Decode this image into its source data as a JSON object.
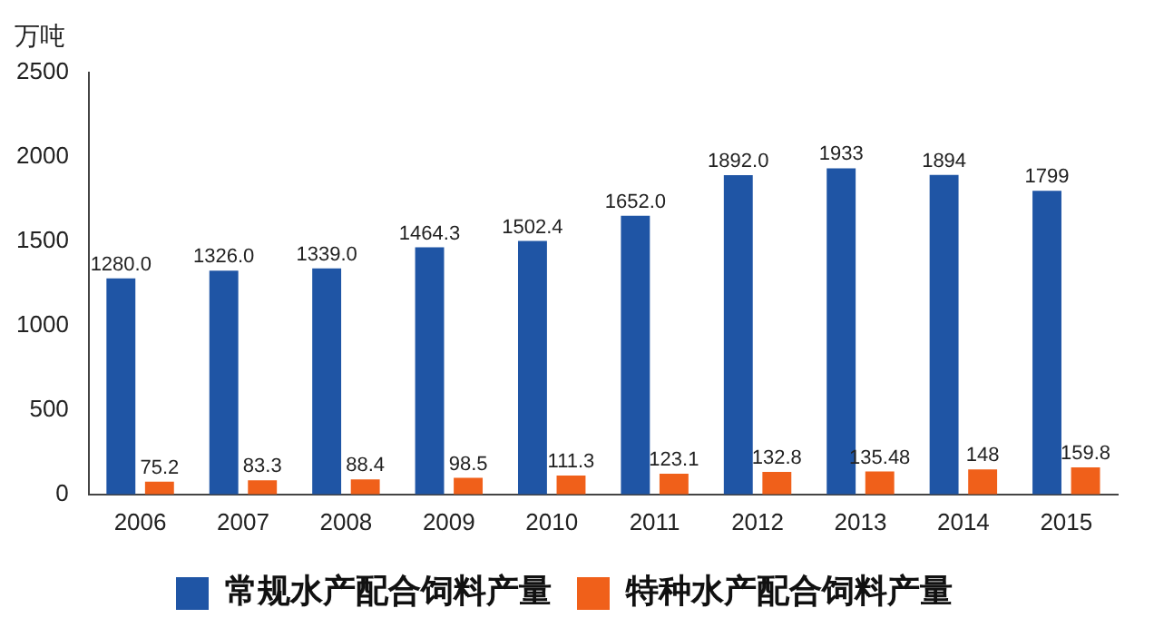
{
  "chart_data": {
    "type": "bar",
    "ylabel": "万吨",
    "categories": [
      "2006",
      "2007",
      "2008",
      "2009",
      "2010",
      "2011",
      "2012",
      "2013",
      "2014",
      "2015"
    ],
    "series": [
      {
        "name": "常规水产配合饲料产量",
        "color": "#1f55a5",
        "values": [
          1280.0,
          1326.0,
          1339.0,
          1464.3,
          1502.4,
          1652.0,
          1892.0,
          1933,
          1894,
          1799
        ],
        "value_labels": [
          "1280.0",
          "1326.0",
          "1339.0",
          "1464.3",
          "1502.4",
          "1652.0",
          "1892.0",
          "1933",
          "1894",
          "1799"
        ]
      },
      {
        "name": "特种水产配合饲料产量",
        "color": "#f0601a",
        "values": [
          75.2,
          83.3,
          88.4,
          98.5,
          111.3,
          123.1,
          132.8,
          135.48,
          148,
          159.8
        ],
        "value_labels": [
          "75.2",
          "83.3",
          "88.4",
          "98.5",
          "111.3",
          "123.1",
          "132.8",
          "135.48",
          "148",
          "159.8"
        ]
      }
    ],
    "ylim": [
      0,
      2500
    ],
    "yticks": [
      0,
      500,
      1000,
      1500,
      2000,
      2500
    ],
    "grid": false,
    "legend": "bottom"
  }
}
